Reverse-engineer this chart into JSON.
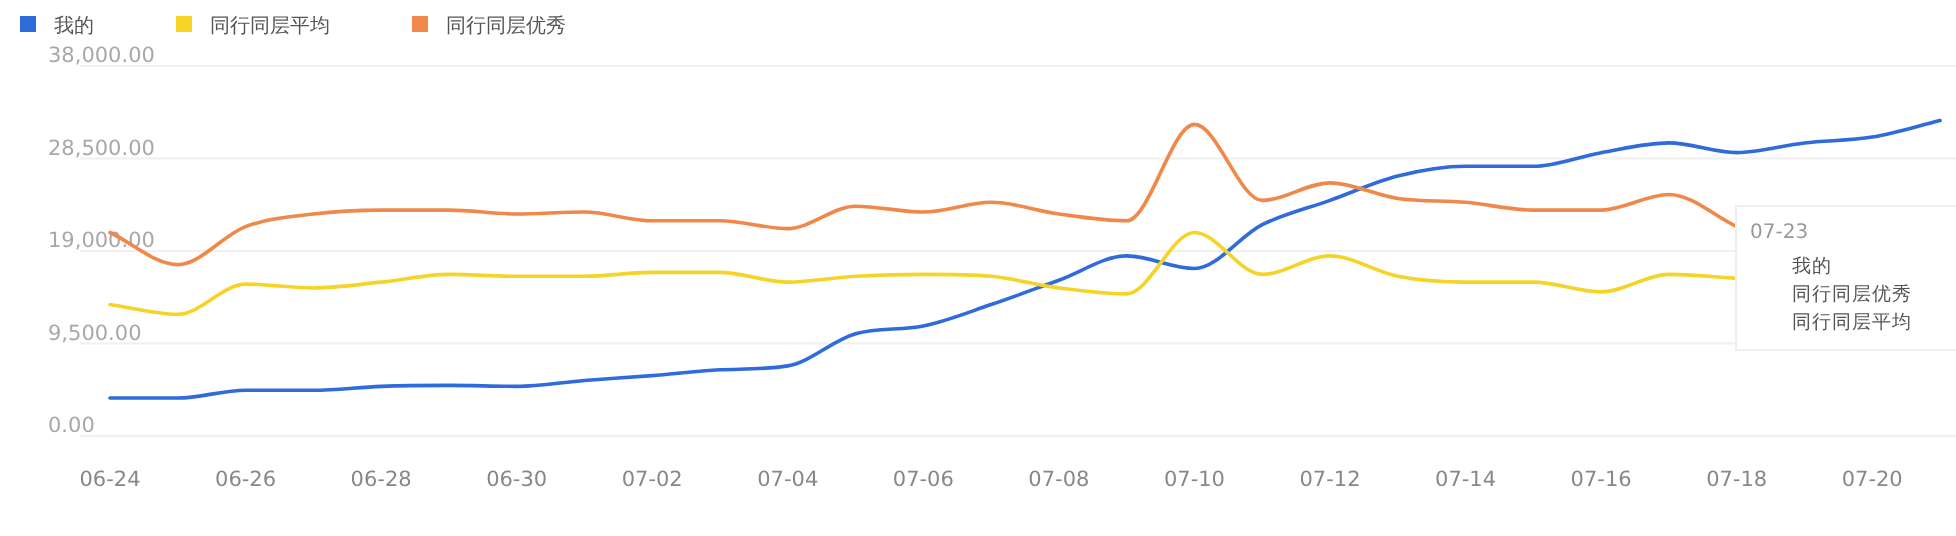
{
  "chart_data": {
    "type": "line",
    "categories": [
      "06-24",
      null,
      "06-26",
      null,
      "06-28",
      null,
      "06-30",
      null,
      "07-02",
      null,
      "07-04",
      null,
      "07-06",
      null,
      "07-08",
      null,
      "07-10",
      null,
      "07-12",
      null,
      "07-14",
      null,
      "07-16",
      null,
      "07-18",
      null,
      "07-20",
      null
    ],
    "series": [
      {
        "name": "我的",
        "color": "#2f6bdb",
        "values": [
          3900,
          3900,
          4700,
          4700,
          5100,
          5200,
          5100,
          5700,
          6200,
          6800,
          7200,
          10500,
          11300,
          13500,
          16000,
          18500,
          17200,
          21700,
          24200,
          26700,
          27700,
          27700,
          29100,
          30100,
          29100,
          30100,
          30700,
          32400
        ]
      },
      {
        "name": "同行同层平均",
        "color": "#f5d327",
        "values": [
          13500,
          12500,
          15600,
          15200,
          15800,
          16600,
          16400,
          16400,
          16800,
          16800,
          15800,
          16400,
          16600,
          16400,
          15200,
          14600,
          20900,
          16600,
          18500,
          16400,
          15800,
          15800,
          14800,
          16600,
          16200,
          null,
          null,
          null
        ]
      },
      {
        "name": "同行同层优秀",
        "color": "#f0884a",
        "values": [
          20900,
          17600,
          21500,
          22800,
          23200,
          23200,
          22800,
          23000,
          22100,
          22100,
          21300,
          23600,
          23000,
          24000,
          22800,
          22100,
          32000,
          24200,
          26000,
          24400,
          24000,
          23200,
          23200,
          24800,
          21500,
          null,
          null,
          null
        ]
      }
    ],
    "ylim": [
      0,
      38000
    ],
    "yticks": [
      {
        "value": 0,
        "label": "0.00"
      },
      {
        "value": 9500,
        "label": "9,500.00"
      },
      {
        "value": 19000,
        "label": "19,000.00"
      },
      {
        "value": 28500,
        "label": "28,500.00"
      },
      {
        "value": 38000,
        "label": "38,000.00"
      }
    ],
    "grid": "y",
    "legend": "top left",
    "marker": "none",
    "line_style": "solid",
    "annotations": [
      "07-23"
    ]
  }
}
